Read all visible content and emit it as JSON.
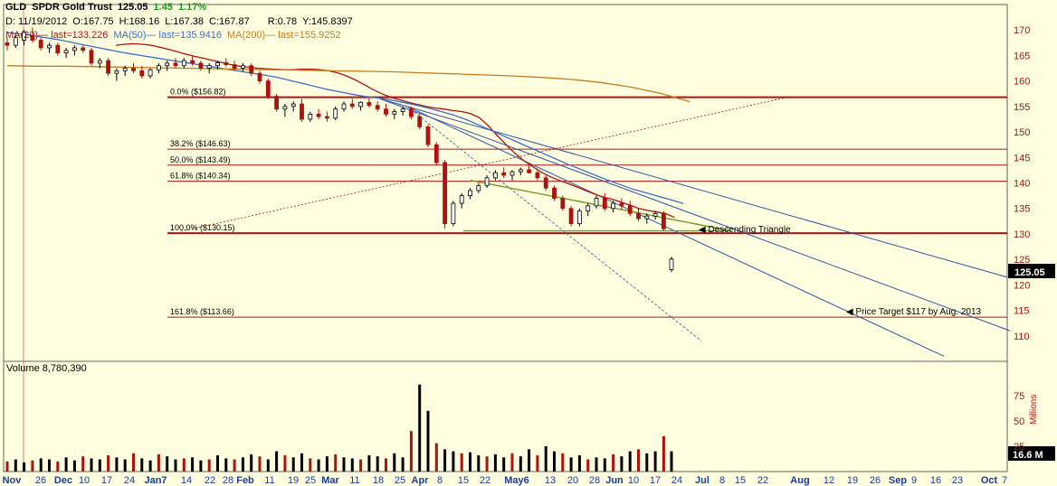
{
  "header": {
    "symbol": "GLD",
    "name": "SPDR Gold Trust",
    "last": "125.05",
    "change": "1.45",
    "change_pct": "1.17%",
    "date": "D: 11/19/2012",
    "open": "O:167.75",
    "high": "H:168.16",
    "low": "L:167.38",
    "close": "C:167.87",
    "r": "R:0.78",
    "y": "Y:145.8397",
    "ma20": "MA(20)",
    "ma20_last": "— last=133.226",
    "ma50": "MA(50)",
    "ma50_last": "— last=135.9416",
    "ma200": "MA(200)",
    "ma200_last": "— last=155.9252"
  },
  "colors": {
    "background": "#ffffe0",
    "up": "#000000",
    "down": "#b01010",
    "ma20": "#b01010",
    "ma50": "#3c6fc8",
    "ma200": "#c77a1e",
    "trend": "#2c55a8",
    "fib": "#b01010",
    "triangle": "#6f9a22",
    "positive": "#1a9a1a",
    "price_tag": "#000000"
  },
  "chart_data": {
    "type": "candlestick",
    "price_axis": {
      "min": 105,
      "max": 175,
      "ticks": [
        110,
        115,
        120,
        125,
        130,
        135,
        140,
        145,
        150,
        155,
        160,
        165,
        170
      ]
    },
    "volume_axis": {
      "label": "Millions",
      "ticks": [
        25,
        50,
        75
      ],
      "max": 100
    },
    "x_labels": [
      "Nov",
      "26",
      "Dec",
      "10",
      "17",
      "24",
      "Jan7",
      "14",
      "22",
      "28",
      "Feb",
      "11",
      "19",
      "25",
      "Mar",
      "11",
      "18",
      "25",
      "Apr",
      "8",
      "15",
      "22",
      "May6",
      "13",
      "20",
      "28",
      "Jun",
      "10",
      "17",
      "24",
      "Jul",
      "8",
      "15",
      "22",
      "Aug",
      "12",
      "19",
      "26",
      "Sep",
      "9",
      "16",
      "23",
      "Oct",
      "7"
    ],
    "last_price_label": "125.05",
    "last_volume_label": "16.6 M",
    "volume_title": "Volume 8,780,390",
    "fib_levels": [
      {
        "label": "0.0%   ($156.82)",
        "value": 156.82
      },
      {
        "label": "38.2%   ($146.63)",
        "value": 146.63
      },
      {
        "label": "50.0%   ($143.49)",
        "value": 143.49
      },
      {
        "label": "61.8%   ($140.34)",
        "value": 140.34
      },
      {
        "label": "100.0%   ($130.15)",
        "value": 130.15
      },
      {
        "label": "161.8%   ($113.66)",
        "value": 113.66
      }
    ],
    "annotations": [
      {
        "text": "Descending Triangle"
      },
      {
        "text": "Price Target $117 by Aug. 2013"
      }
    ],
    "ohlc": [
      [
        167.5,
        168.5,
        166,
        167
      ],
      [
        167,
        169,
        166.5,
        168.5
      ],
      [
        168,
        170,
        167,
        169.5
      ],
      [
        169,
        170.5,
        167.5,
        168
      ],
      [
        168,
        168.5,
        166,
        166.5
      ],
      [
        166.5,
        167.5,
        165.5,
        167
      ],
      [
        167,
        167.5,
        165,
        165.5
      ],
      [
        165.5,
        166.5,
        164.5,
        166
      ],
      [
        166,
        167,
        165,
        166.5
      ],
      [
        166.5,
        167,
        165.5,
        166
      ],
      [
        166,
        166.5,
        163,
        163.5
      ],
      [
        163.5,
        164.5,
        162.5,
        164
      ],
      [
        164,
        164.5,
        161,
        161.5
      ],
      [
        161.5,
        162.5,
        160,
        162
      ],
      [
        162,
        163,
        161,
        162.5
      ],
      [
        162.5,
        163.5,
        161.5,
        162
      ],
      [
        162,
        163,
        160.5,
        161
      ],
      [
        161,
        162.5,
        160.5,
        162.2
      ],
      [
        162.2,
        163.5,
        161.5,
        163
      ],
      [
        163,
        164,
        162,
        163.5
      ],
      [
        163.5,
        164.5,
        162.5,
        163
      ],
      [
        163,
        164.5,
        162.5,
        164
      ],
      [
        164,
        165,
        163,
        163.5
      ],
      [
        163.5,
        164,
        162,
        162.5
      ],
      [
        162.5,
        163.5,
        161.5,
        163
      ],
      [
        163,
        164,
        162.3,
        163.6
      ],
      [
        163.6,
        164.5,
        162.8,
        163.2
      ],
      [
        163.2,
        164,
        162,
        162.5
      ],
      [
        162.5,
        163.5,
        161.8,
        163
      ],
      [
        163,
        163.5,
        161,
        161.5
      ],
      [
        161.5,
        162,
        159.5,
        160
      ],
      [
        160,
        160.5,
        156.5,
        157
      ],
      [
        157,
        157.5,
        154,
        154.5
      ],
      [
        154.5,
        155.5,
        153,
        155
      ],
      [
        155,
        156,
        154,
        155.5
      ],
      [
        155.5,
        156.5,
        152,
        152.5
      ],
      [
        152.5,
        154,
        152,
        153.5
      ],
      [
        153.5,
        154.5,
        152.5,
        153
      ],
      [
        153,
        154,
        152,
        152.7
      ],
      [
        152.7,
        155,
        152.3,
        154.5
      ],
      [
        154.5,
        156,
        154,
        155.5
      ],
      [
        155.5,
        156.5,
        154.5,
        155
      ],
      [
        155,
        156,
        154.2,
        155.8
      ],
      [
        155.8,
        156.6,
        154.8,
        155.2
      ],
      [
        155.2,
        156,
        154,
        154.5
      ],
      [
        154.5,
        155.5,
        153,
        153.5
      ],
      [
        153.5,
        154.5,
        152.5,
        154
      ],
      [
        154,
        155,
        153.2,
        154.5
      ],
      [
        154.5,
        155,
        152.5,
        153
      ],
      [
        153,
        153.5,
        150.5,
        151
      ],
      [
        151,
        151.5,
        147,
        147.5
      ],
      [
        147.5,
        148,
        143.5,
        144
      ],
      [
        144,
        144.5,
        131,
        132
      ],
      [
        132,
        136.5,
        131.5,
        136
      ],
      [
        136,
        138,
        135,
        137.5
      ],
      [
        137.5,
        139,
        136.8,
        138.5
      ],
      [
        138.5,
        140,
        138,
        139.5
      ],
      [
        139.5,
        141.5,
        139,
        141
      ],
      [
        141,
        142.5,
        140.5,
        142
      ],
      [
        142,
        143,
        141,
        141.5
      ],
      [
        141.5,
        142.5,
        140.5,
        142.2
      ],
      [
        142.2,
        143,
        141.5,
        142.6
      ],
      [
        142.6,
        143.5,
        141.8,
        142
      ],
      [
        142,
        142.8,
        140.5,
        141
      ],
      [
        141,
        141.5,
        138.5,
        139
      ],
      [
        139,
        139.5,
        136.5,
        137
      ],
      [
        137,
        137.5,
        134.5,
        135
      ],
      [
        135,
        135.5,
        131.5,
        132
      ],
      [
        132,
        135,
        131.5,
        134.5
      ],
      [
        134.5,
        136,
        133.5,
        135.5
      ],
      [
        135.5,
        137.5,
        135,
        137
      ],
      [
        137,
        138,
        134.5,
        135
      ],
      [
        135,
        136.5,
        134.2,
        136
      ],
      [
        136,
        137,
        134.8,
        135.5
      ],
      [
        135.5,
        136.5,
        133.5,
        134
      ],
      [
        134,
        135,
        132.5,
        133
      ],
      [
        133,
        134,
        132,
        133.5
      ],
      [
        133.5,
        134.5,
        132.8,
        134
      ],
      [
        134,
        134.5,
        130.5,
        131
      ],
      [
        123,
        125.5,
        122.5,
        125.05
      ]
    ],
    "ohlc_x_days": [
      0,
      1,
      2,
      3,
      4,
      5,
      6,
      7,
      8,
      9,
      10,
      11,
      12,
      13,
      14,
      15,
      16,
      17,
      18,
      19,
      20,
      21,
      22,
      23,
      24,
      25,
      26,
      27,
      28,
      29,
      30,
      31,
      32,
      33,
      34,
      35,
      36,
      37,
      38,
      39,
      40,
      41,
      42,
      43,
      44,
      45,
      46,
      47,
      48,
      49,
      50,
      51,
      52,
      53,
      54,
      55,
      56,
      57,
      58,
      59,
      60,
      61,
      62,
      63,
      64,
      65,
      66,
      67,
      68,
      69,
      70,
      71,
      72,
      73,
      74,
      75,
      76,
      77,
      78,
      79
    ],
    "volume": [
      10,
      12,
      9,
      11,
      13,
      12,
      10,
      14,
      11,
      15,
      13,
      12,
      16,
      14,
      12,
      18,
      13,
      11,
      17,
      15,
      12,
      13,
      14,
      11,
      12,
      16,
      13,
      12,
      14,
      17,
      15,
      12,
      20,
      16,
      14,
      18,
      13,
      12,
      15,
      17,
      14,
      13,
      12,
      16,
      15,
      13,
      18,
      14,
      40,
      86,
      60,
      28,
      22,
      20,
      18,
      19,
      16,
      15,
      17,
      14,
      18,
      15,
      22,
      16,
      25,
      20,
      18,
      14,
      16,
      12,
      14,
      13,
      17,
      15,
      20,
      22,
      18,
      20,
      35,
      20
    ],
    "ma20": [
      167,
      167.2,
      167.3,
      167.2,
      167,
      166.6,
      166.2,
      165.7,
      165.2,
      164.8,
      164.4,
      164,
      163.6,
      163.2,
      162.9,
      162.7,
      162.5,
      162.4,
      162.3,
      162.2,
      162.2,
      162.3,
      162.3,
      162.2,
      162,
      161.6,
      161,
      160.2,
      159.3,
      158.3,
      157.5,
      156.8,
      156.3,
      155.8,
      155.4,
      155,
      154.7,
      154.5,
      154.2,
      154,
      153.6,
      152.8,
      151.2,
      149.3,
      147.5,
      145.8,
      144.4,
      143.2,
      142.1,
      141.2,
      140.5,
      139.9,
      139.2,
      138.5,
      137.8,
      137.2,
      136.8,
      136.2,
      135.6,
      135,
      134.6,
      134.3,
      134,
      133.226
    ],
    "ma50": [
      169.5,
      169.2,
      168.9,
      168.5,
      168.1,
      167.6,
      167.1,
      166.6,
      166.1,
      165.6,
      165.2,
      164.8,
      164.4,
      164,
      163.6,
      163.2,
      162.8,
      162.4,
      162,
      161.6,
      161.2,
      160.8,
      160.2,
      159.6,
      159,
      158.4,
      157.9,
      157.4,
      157,
      156.7,
      156.3,
      155.8,
      155.3,
      154.7,
      154,
      153.3,
      152.4,
      151.3,
      150.2,
      149.1,
      148,
      146.9,
      145.8,
      144.7,
      143.6,
      142.6,
      141.6,
      140.6,
      139.7,
      138.8,
      138.1,
      137.4,
      136.7,
      135.9416
    ],
    "ma200": [
      163,
      162.9,
      162.9,
      162.8,
      162.7,
      162.6,
      162.5,
      162.4,
      162.3,
      162.2,
      162.1,
      162,
      161.9,
      161.8,
      161.6,
      161.4,
      161.2,
      161,
      160.7,
      160.3,
      159.7,
      158.8,
      157.6,
      155.9252
    ]
  }
}
